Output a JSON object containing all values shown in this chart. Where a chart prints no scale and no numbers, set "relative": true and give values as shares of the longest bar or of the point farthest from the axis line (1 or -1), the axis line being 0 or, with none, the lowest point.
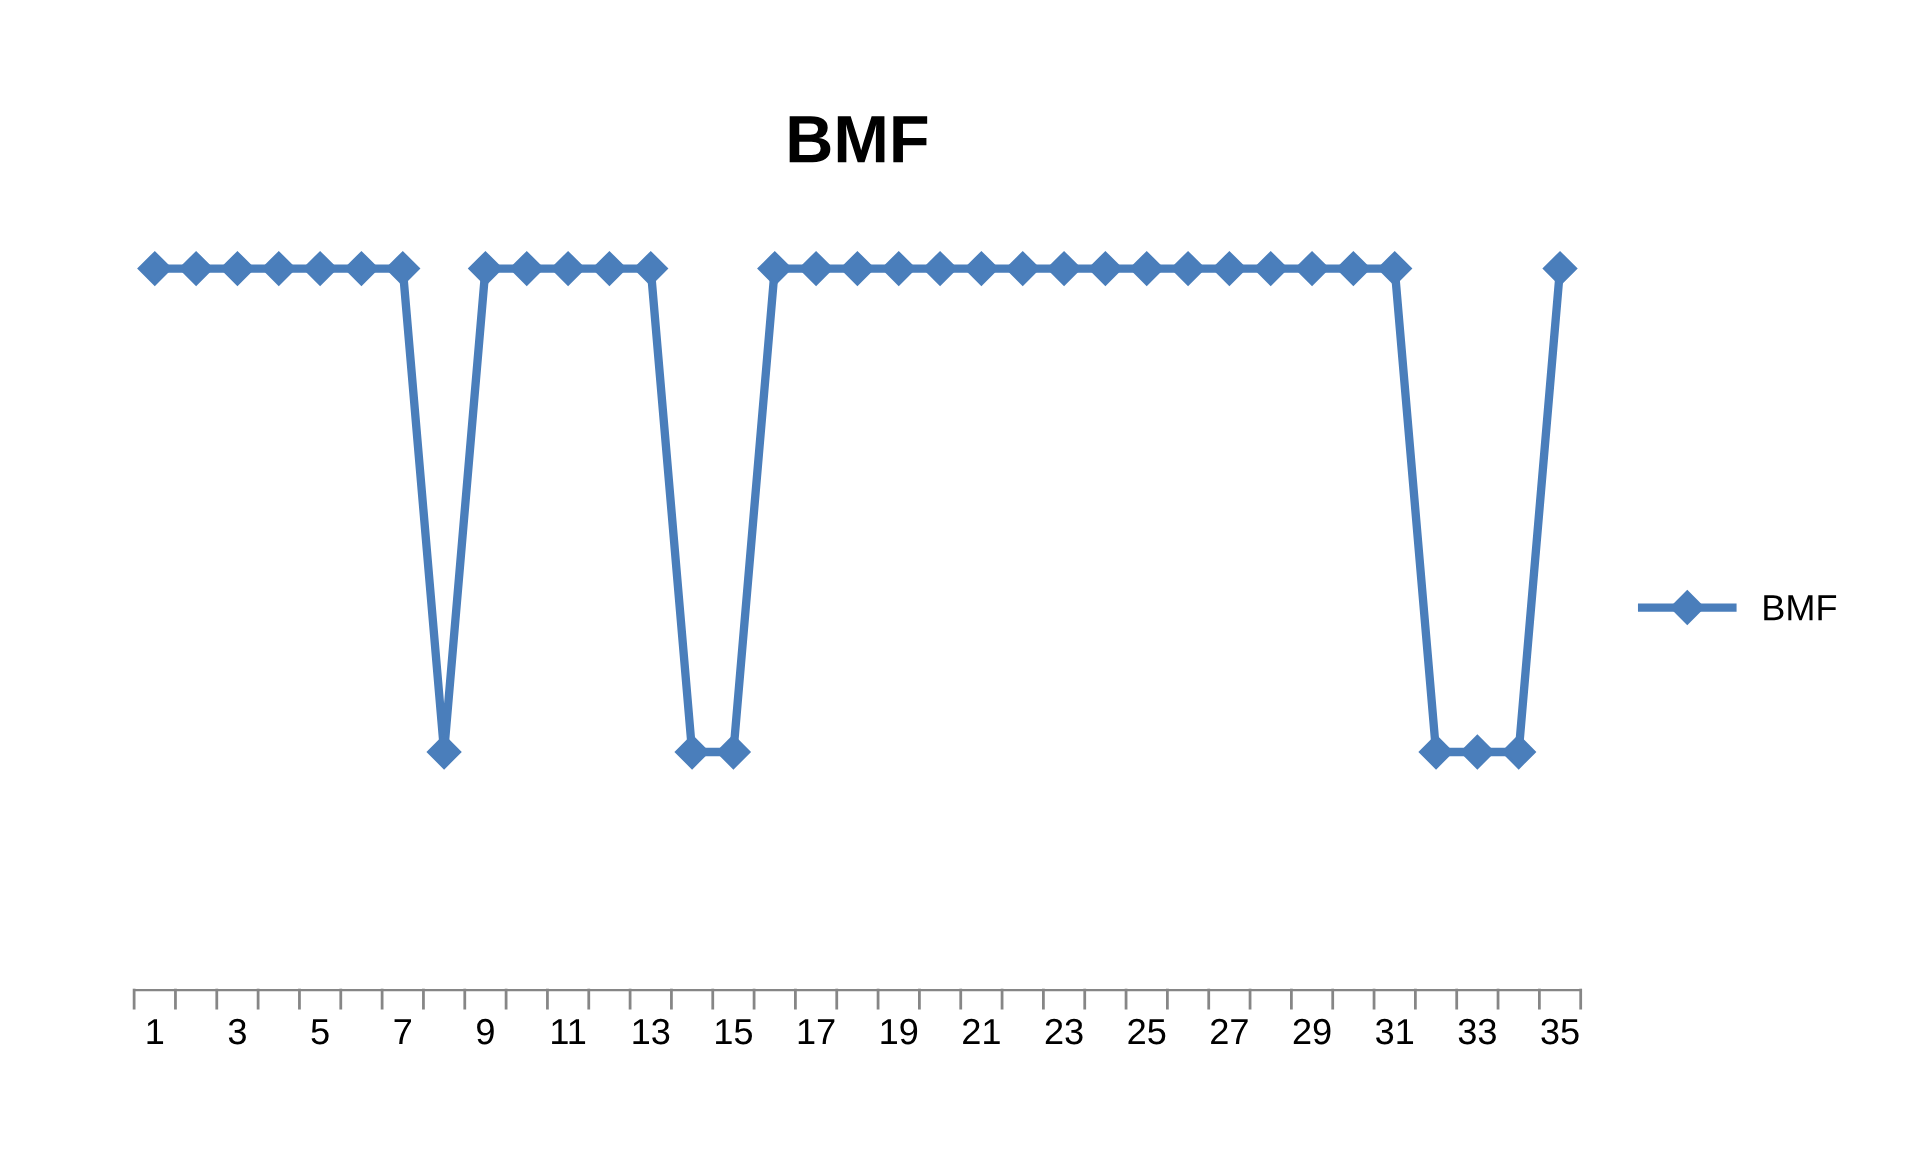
{
  "chart_data": {
    "type": "line",
    "title": "BMF",
    "relative": true,
    "categories": [
      "1",
      null,
      "3",
      null,
      "5",
      null,
      "7",
      null,
      "9",
      null,
      "11",
      null,
      "13",
      null,
      "15",
      null,
      "17",
      null,
      "19",
      null,
      "21",
      null,
      "23",
      null,
      "25",
      null,
      "27",
      null,
      "29",
      null,
      "31",
      null,
      "33",
      null,
      "35"
    ],
    "series": [
      {
        "name": "BMF",
        "color": "#4a7ebb",
        "values": [
          1,
          1,
          1,
          1,
          1,
          1,
          1,
          0.33,
          1,
          1,
          1,
          1,
          1,
          0.33,
          0.33,
          1,
          1,
          1,
          1,
          1,
          1,
          1,
          1,
          1,
          1,
          1,
          1,
          1,
          1,
          1,
          1,
          0.33,
          0.33,
          0.33,
          1
        ]
      }
    ],
    "legend": "right",
    "marker": "diamond",
    "line_style": "solid"
  }
}
